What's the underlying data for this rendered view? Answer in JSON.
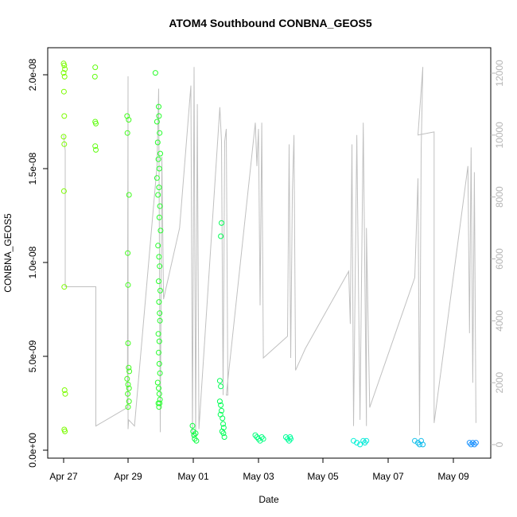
{
  "chart_data": {
    "type": "scatter",
    "title": "ATOM4 Southbound CONBNA_GEOS5",
    "xlabel": "Date",
    "ylabel": "CONBNA_GEOS5",
    "x_ticks": [
      "Apr 27",
      "Apr 29",
      "May 01",
      "May 03",
      "May 05",
      "May 07",
      "May 09"
    ],
    "y_ticks": [
      "0.0e+00",
      "5.0e-09",
      "1.0e-08",
      "1.5e-08",
      "2.0e-08"
    ],
    "y_right_ticks": [
      "0",
      "2000",
      "4000",
      "6000",
      "8000",
      "10000",
      "12000"
    ],
    "xlim_days_from_apr27": [
      -0.45,
      13.0
    ],
    "ylim": [
      0,
      2.1e-08
    ],
    "y_right_lim": [
      -400,
      12400
    ],
    "grid": false,
    "point_series": {
      "name": "CONBNA_GEOS5",
      "marker": "open-circle",
      "color_gradient": [
        "#7cfc00",
        "#00ff40",
        "#00ffd0",
        "#1e90ff"
      ],
      "points": [
        [
          0.0,
          2.06e-08
        ],
        [
          0.02,
          2.05e-08
        ],
        [
          0.04,
          2.03e-08
        ],
        [
          0.0,
          2.01e-08
        ],
        [
          0.03,
          1.99e-08
        ],
        [
          0.01,
          1.91e-08
        ],
        [
          0.02,
          1.78e-08
        ],
        [
          0.0,
          1.67e-08
        ],
        [
          0.02,
          1.63e-08
        ],
        [
          0.01,
          1.38e-08
        ],
        [
          0.02,
          8.7e-09
        ],
        [
          0.03,
          3.2e-09
        ],
        [
          0.05,
          3e-09
        ],
        [
          0.02,
          1.1e-09
        ],
        [
          0.04,
          1e-09
        ],
        [
          0.98,
          2.04e-08
        ],
        [
          0.97,
          1.99e-08
        ],
        [
          0.98,
          1.75e-08
        ],
        [
          1.0,
          1.74e-08
        ],
        [
          0.98,
          1.62e-08
        ],
        [
          1.0,
          1.6e-08
        ],
        [
          1.97,
          1.78e-08
        ],
        [
          2.02,
          1.76e-08
        ],
        [
          1.98,
          1.69e-08
        ],
        [
          2.03,
          1.36e-08
        ],
        [
          1.99,
          1.05e-08
        ],
        [
          2.0,
          8.8e-09
        ],
        [
          2.0,
          5.7e-09
        ],
        [
          2.02,
          4.4e-09
        ],
        [
          2.04,
          4.2e-09
        ],
        [
          1.97,
          3.8e-09
        ],
        [
          2.0,
          3.5e-09
        ],
        [
          2.03,
          3.3e-09
        ],
        [
          1.99,
          3e-09
        ],
        [
          2.03,
          2.6e-09
        ],
        [
          2.0,
          2.3e-09
        ],
        [
          2.85,
          2.01e-08
        ],
        [
          2.95,
          1.83e-08
        ],
        [
          2.96,
          1.78e-08
        ],
        [
          2.9,
          1.75e-08
        ],
        [
          2.98,
          1.69e-08
        ],
        [
          2.92,
          1.64e-08
        ],
        [
          3.0,
          1.58e-08
        ],
        [
          2.94,
          1.55e-08
        ],
        [
          2.97,
          1.5e-08
        ],
        [
          2.9,
          1.45e-08
        ],
        [
          2.96,
          1.4e-08
        ],
        [
          2.93,
          1.36e-08
        ],
        [
          2.99,
          1.3e-08
        ],
        [
          2.97,
          1.24e-08
        ],
        [
          3.01,
          1.17e-08
        ],
        [
          2.93,
          1.09e-08
        ],
        [
          2.96,
          1.03e-08
        ],
        [
          2.98,
          9.8e-09
        ],
        [
          2.95,
          9e-09
        ],
        [
          3.0,
          8.5e-09
        ],
        [
          2.96,
          7.9e-09
        ],
        [
          2.98,
          7.3e-09
        ],
        [
          2.99,
          6.9e-09
        ],
        [
          2.94,
          6.2e-09
        ],
        [
          2.97,
          5.8e-09
        ],
        [
          2.95,
          5.2e-09
        ],
        [
          2.97,
          4.6e-09
        ],
        [
          2.99,
          4.1e-09
        ],
        [
          2.92,
          3.6e-09
        ],
        [
          2.95,
          3.3e-09
        ],
        [
          2.97,
          3e-09
        ],
        [
          2.99,
          2.7e-09
        ],
        [
          2.94,
          2.5e-09
        ],
        [
          2.96,
          2.3e-09
        ],
        [
          2.98,
          2.5e-09
        ],
        [
          4.0,
          1.3e-09
        ],
        [
          4.02,
          1e-09
        ],
        [
          4.05,
          8e-10
        ],
        [
          4.07,
          6e-10
        ],
        [
          4.1,
          9e-10
        ],
        [
          4.12,
          5e-10
        ],
        [
          4.9,
          1.21e-08
        ],
        [
          4.88,
          1.14e-08
        ],
        [
          4.85,
          3.7e-09
        ],
        [
          4.88,
          3.4e-09
        ],
        [
          4.85,
          2.6e-09
        ],
        [
          4.88,
          2.4e-09
        ],
        [
          4.9,
          2.1e-09
        ],
        [
          4.87,
          1.9e-09
        ],
        [
          4.93,
          1.7e-09
        ],
        [
          4.95,
          1.4e-09
        ],
        [
          4.97,
          1.2e-09
        ],
        [
          4.92,
          1e-09
        ],
        [
          4.96,
          9e-10
        ],
        [
          4.99,
          7e-10
        ],
        [
          5.95,
          8e-10
        ],
        [
          6.0,
          7e-10
        ],
        [
          6.05,
          6e-10
        ],
        [
          6.1,
          5e-10
        ],
        [
          6.15,
          7e-10
        ],
        [
          6.2,
          6e-10
        ],
        [
          6.9,
          7e-10
        ],
        [
          6.95,
          6e-10
        ],
        [
          7.0,
          5e-10
        ],
        [
          7.03,
          7e-10
        ],
        [
          7.05,
          6e-10
        ],
        [
          9.0,
          5e-10
        ],
        [
          9.1,
          4e-10
        ],
        [
          9.2,
          3e-10
        ],
        [
          9.3,
          5e-10
        ],
        [
          9.35,
          4e-10
        ],
        [
          9.4,
          5e-10
        ],
        [
          10.9,
          5e-10
        ],
        [
          11.0,
          4e-10
        ],
        [
          11.05,
          3e-10
        ],
        [
          11.1,
          5e-10
        ],
        [
          11.15,
          3e-10
        ],
        [
          12.6,
          4e-10
        ],
        [
          12.65,
          3e-10
        ],
        [
          12.7,
          4e-10
        ],
        [
          12.75,
          3e-10
        ],
        [
          12.8,
          4e-10
        ]
      ]
    },
    "line_series": {
      "name": "altitude",
      "axis": "right",
      "color": "#c0c0c0",
      "points": [
        [
          0.0,
          10000
        ],
        [
          0.05,
          9500
        ],
        [
          0.05,
          9000
        ],
        [
          0.05,
          5100
        ],
        [
          1.0,
          5100
        ],
        [
          1.0,
          600
        ],
        [
          1.0,
          600
        ],
        [
          1.98,
          1200
        ],
        [
          2.0,
          11900
        ],
        [
          2.0,
          500
        ],
        [
          2.02,
          800
        ],
        [
          2.2,
          600
        ],
        [
          2.9,
          9000
        ],
        [
          2.95,
          11500
        ],
        [
          3.0,
          400
        ],
        [
          3.05,
          9300
        ],
        [
          3.1,
          4700
        ],
        [
          3.6,
          7000
        ],
        [
          3.95,
          11600
        ],
        [
          4.0,
          200
        ],
        [
          4.05,
          12200
        ],
        [
          4.1,
          300
        ],
        [
          4.15,
          11000
        ],
        [
          4.2,
          500
        ],
        [
          4.85,
          10900
        ],
        [
          4.9,
          9800
        ],
        [
          4.95,
          1600
        ],
        [
          5.0,
          9800
        ],
        [
          5.05,
          10200
        ],
        [
          5.1,
          1600
        ],
        [
          5.05,
          1600
        ],
        [
          5.95,
          10400
        ],
        [
          6.0,
          9000
        ],
        [
          6.05,
          10200
        ],
        [
          6.1,
          4500
        ],
        [
          6.15,
          10400
        ],
        [
          6.2,
          2800
        ],
        [
          6.95,
          3500
        ],
        [
          7.0,
          9700
        ],
        [
          7.05,
          2800
        ],
        [
          7.1,
          8200
        ],
        [
          7.15,
          10000
        ],
        [
          7.2,
          2400
        ],
        [
          7.5,
          3100
        ],
        [
          8.85,
          5600
        ],
        [
          8.9,
          3900
        ],
        [
          8.95,
          9700
        ],
        [
          9.0,
          600
        ],
        [
          9.1,
          10000
        ],
        [
          9.2,
          800
        ],
        [
          9.3,
          10400
        ],
        [
          9.4,
          600
        ],
        [
          9.4,
          7000
        ],
        [
          9.5,
          1200
        ],
        [
          10.9,
          5400
        ],
        [
          11.0,
          8600
        ],
        [
          11.05,
          300
        ],
        [
          11.1,
          9500
        ],
        [
          11.15,
          12200
        ],
        [
          11.0,
          10000
        ],
        [
          11.5,
          10100
        ],
        [
          11.5,
          700
        ],
        [
          12.55,
          9000
        ],
        [
          12.6,
          3600
        ],
        [
          12.65,
          9600
        ],
        [
          12.7,
          2000
        ],
        [
          12.75,
          8800
        ],
        [
          12.8,
          700
        ]
      ]
    }
  }
}
